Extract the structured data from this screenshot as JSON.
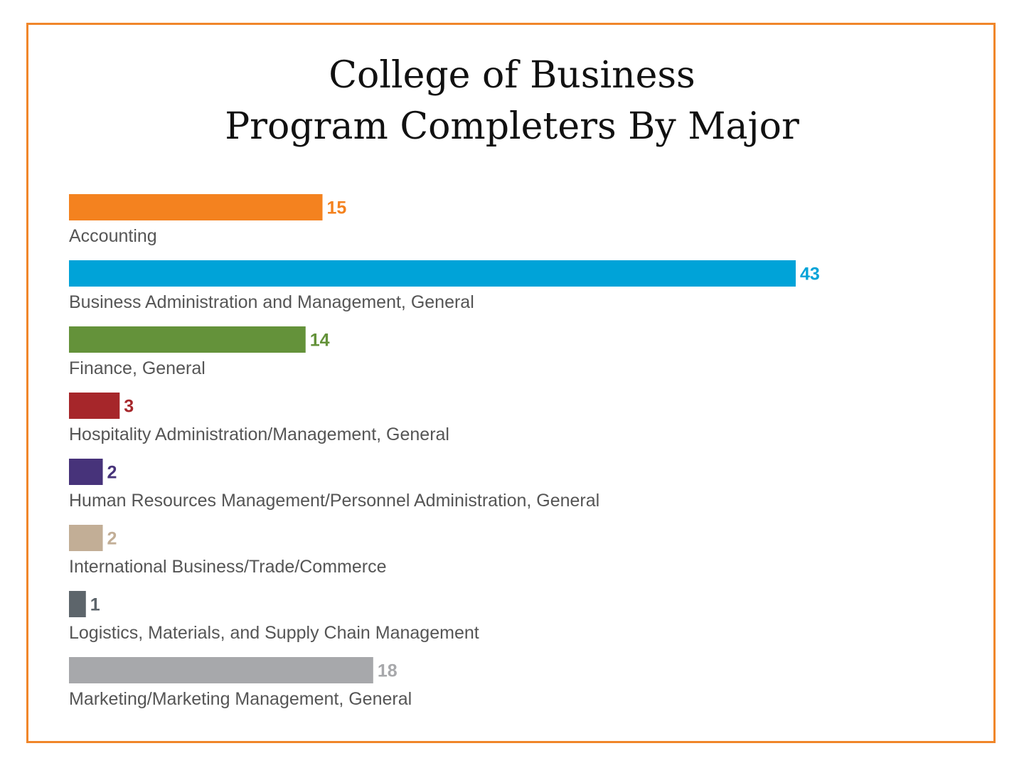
{
  "chart_data": {
    "type": "bar",
    "orientation": "horizontal",
    "title_lines": [
      "College of Business",
      "Program Completers By Major"
    ],
    "categories": [
      "Accounting",
      "Business Administration and Management, General",
      "Finance, General",
      "Hospitality Administration/Management, General",
      "Human Resources Management/Personnel Administration, General",
      "International Business/Trade/Commerce",
      "Logistics, Materials, and Supply Chain Management",
      "Marketing/Marketing Management, General"
    ],
    "values": [
      15,
      43,
      14,
      3,
      2,
      2,
      1,
      18
    ],
    "colors": [
      "#f4821f",
      "#00a3d8",
      "#64923a",
      "#a6262a",
      "#47337a",
      "#c2ae96",
      "#5d656b",
      "#a7a8ab"
    ],
    "xlim": [
      0,
      43
    ],
    "grid": false,
    "legend": "none"
  },
  "frame_color": "#f0862a"
}
